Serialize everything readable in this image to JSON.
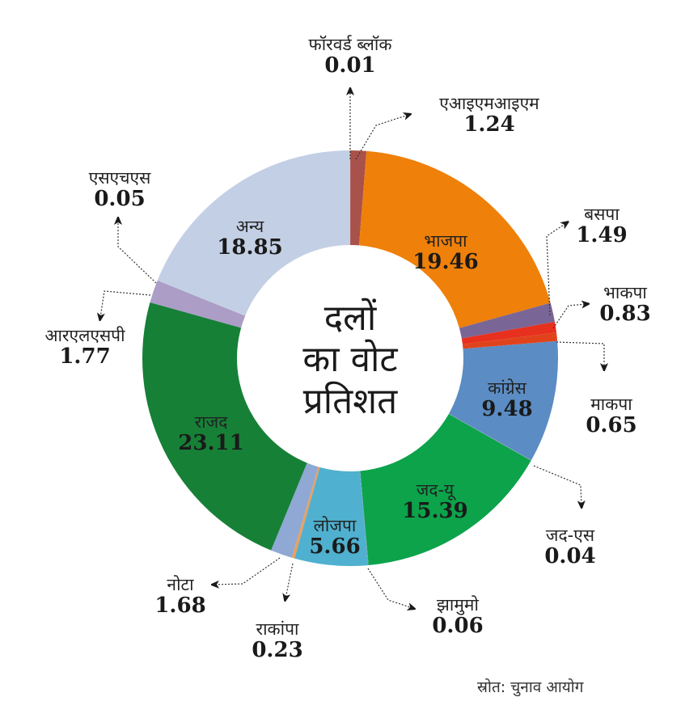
{
  "chart_data": {
    "type": "pie",
    "variant": "donut",
    "title": "दलों का वोट प्रतिशत",
    "source": "स्रोत: चुनाव आयोग",
    "unit": "%",
    "categories": [
      "फॉरवर्ड ब्लॉक",
      "एआइएमआइएम",
      "भाजपा",
      "बसपा",
      "भाकपा",
      "माकपा",
      "कांग्रेस",
      "जद-एस",
      "जद-यू",
      "झामुमो",
      "लोजपा",
      "राकांपा",
      "नोटा",
      "राजद",
      "आरएलएसपी",
      "एसएचएस",
      "अन्य"
    ],
    "values": [
      0.01,
      1.24,
      19.46,
      1.49,
      0.83,
      0.65,
      9.48,
      0.04,
      15.39,
      0.06,
      5.66,
      0.23,
      1.68,
      23.11,
      1.77,
      0.05,
      18.85
    ],
    "colors": [
      "#b5514a",
      "#a8524b",
      "#ef8009",
      "#7a6696",
      "#e8301f",
      "#e0431c",
      "#5b8cc4",
      "#8a9bb0",
      "#0ca34b",
      "#6aa0b0",
      "#4fb0cf",
      "#e8a060",
      "#8fa8d4",
      "#168037",
      "#ab9dc6",
      "#b8c4dc",
      "#c3cfe4"
    ]
  },
  "center_title": {
    "line1": "दलों",
    "line2": "का वोट",
    "line3": "प्रतिशत"
  },
  "source": "स्रोत: चुनाव आयोग",
  "labels": {
    "fb": {
      "name": "फॉरवर्ड ब्लॉक",
      "value": "0.01"
    },
    "aimim": {
      "name": "एआइएमआइएम",
      "value": "1.24"
    },
    "bjp": {
      "name": "भाजपा",
      "value": "19.46"
    },
    "bsp": {
      "name": "बसपा",
      "value": "1.49"
    },
    "cpi": {
      "name": "भाकपा",
      "value": "0.83"
    },
    "cpm": {
      "name": "माकपा",
      "value": "0.65"
    },
    "cong": {
      "name": "कांग्रेस",
      "value": "9.48"
    },
    "jds": {
      "name": "जद-एस",
      "value": "0.04"
    },
    "jdu": {
      "name": "जद-यू",
      "value": "15.39"
    },
    "jmm": {
      "name": "झामुमो",
      "value": "0.06"
    },
    "ljp": {
      "name": "लोजपा",
      "value": "5.66"
    },
    "ncp": {
      "name": "राकांपा",
      "value": "0.23"
    },
    "nota": {
      "name": "नोटा",
      "value": "1.68"
    },
    "rjd": {
      "name": "राजद",
      "value": "23.11"
    },
    "rlsp": {
      "name": "आरएलएसपी",
      "value": "1.77"
    },
    "shs": {
      "name": "एसएचएस",
      "value": "0.05"
    },
    "others": {
      "name": "अन्य",
      "value": "18.85"
    }
  }
}
